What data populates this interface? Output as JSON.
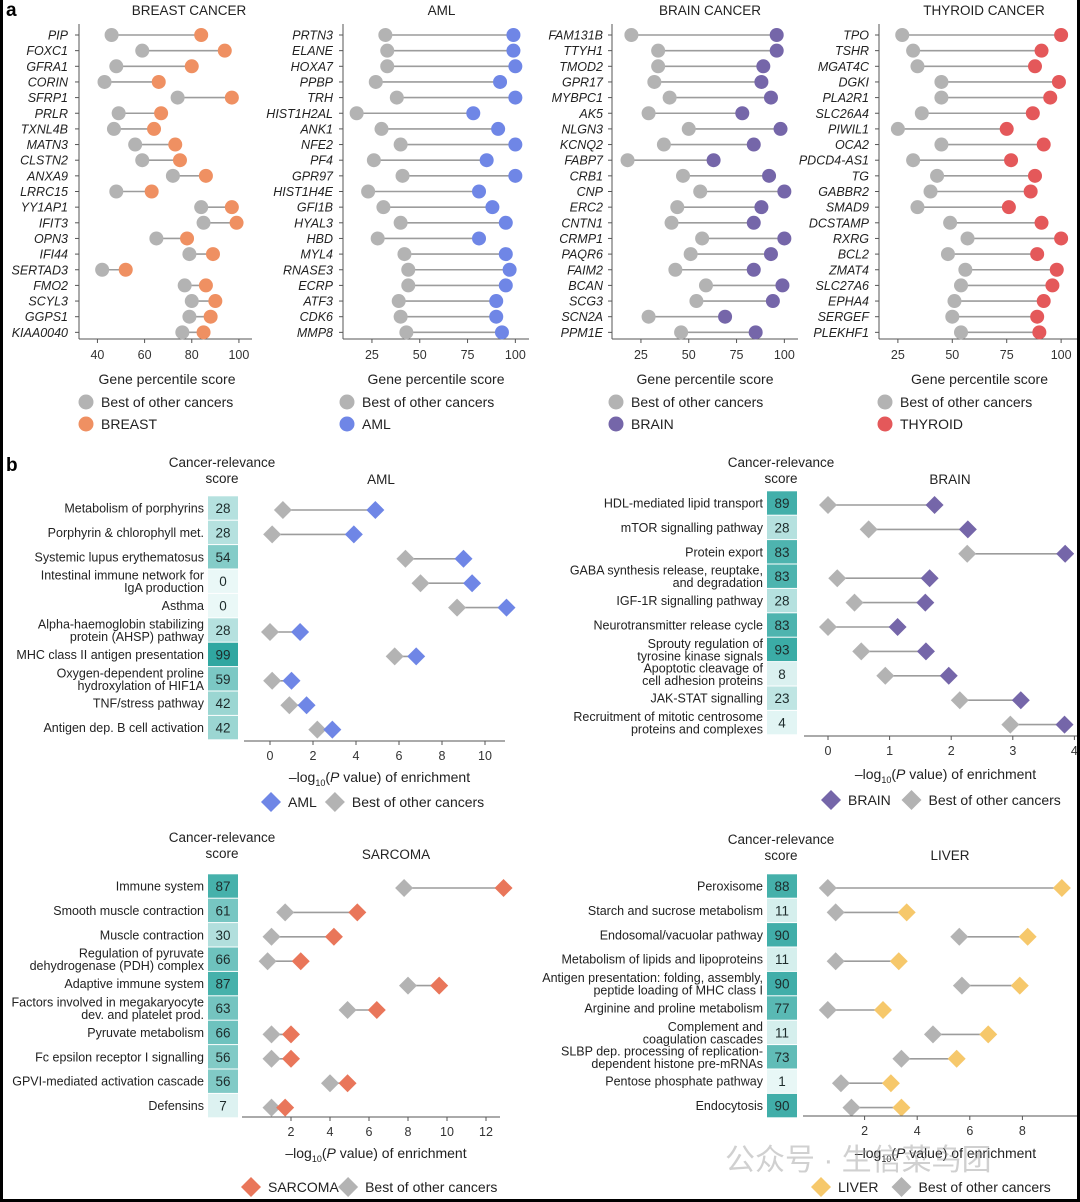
{
  "figure": {
    "panel_a_label": "a",
    "panel_b_label": "b",
    "watermark": "公众号 · 生信菜鸟团"
  },
  "colors": {
    "other": "#b3b3b3",
    "breast": "#ef9062",
    "aml": "#6f86e6",
    "brain": "#7566a9",
    "thyroid": "#e4585a",
    "sarcoma": "#e9765a",
    "liver": "#f6c86b",
    "line": "#9c9c9c",
    "axis": "#555555"
  },
  "chart_data": [
    {
      "type": "scatter",
      "subtype": "dumbbell",
      "title": "BREAST CANCER",
      "xlabel": "Gene percentile score",
      "xlim": [
        36,
        103
      ],
      "xticks": [
        40,
        60,
        80,
        100
      ],
      "legend": [
        "Best of other cancers",
        "BREAST"
      ],
      "legend_position": "bottom",
      "accent_key": "breast",
      "categories": [
        "PIP",
        "FOXC1",
        "GFRA1",
        "CORIN",
        "SFRP1",
        "PRLR",
        "TXNL4B",
        "MATN3",
        "CLSTN2",
        "ANXA9",
        "LRRC15",
        "YY1AP1",
        "IFIT3",
        "OPN3",
        "IFI44",
        "SERTAD3",
        "FMO2",
        "SCYL3",
        "GGPS1",
        "KIAA0040"
      ],
      "series": [
        {
          "name": "Best of other cancers",
          "values": [
            46,
            59,
            48,
            43,
            74,
            49,
            47,
            56,
            59,
            72,
            48,
            84,
            85,
            65,
            79,
            42,
            77,
            80,
            79,
            76
          ]
        },
        {
          "name": "BREAST",
          "values": [
            84,
            94,
            80,
            66,
            97,
            67,
            64,
            73,
            75,
            86,
            63,
            97,
            99,
            78,
            89,
            52,
            86,
            90,
            88,
            85
          ]
        }
      ]
    },
    {
      "type": "scatter",
      "subtype": "dumbbell",
      "title": "AML",
      "xlabel": "Gene percentile score",
      "xlim": [
        13,
        104
      ],
      "xticks": [
        25,
        50,
        75,
        100
      ],
      "legend": [
        "Best of other cancers",
        "AML"
      ],
      "legend_position": "bottom",
      "accent_key": "aml",
      "categories": [
        "PRTN3",
        "ELANE",
        "HOXA7",
        "PPBP",
        "TRH",
        "HIST1H2AL",
        "ANK1",
        "NFE2",
        "PF4",
        "GPR97",
        "HIST1H4E",
        "GFI1B",
        "HYAL3",
        "HBD",
        "MYL4",
        "RNASE3",
        "ECRP",
        "ATF3",
        "CDK6",
        "MMP8"
      ],
      "series": [
        {
          "name": "Best of other cancers",
          "values": [
            32,
            33,
            33,
            27,
            38,
            17,
            30,
            40,
            26,
            41,
            23,
            31,
            40,
            28,
            42,
            44,
            44,
            39,
            40,
            43
          ]
        },
        {
          "name": "AML",
          "values": [
            99,
            99,
            100,
            92,
            100,
            78,
            91,
            100,
            85,
            100,
            81,
            88,
            95,
            81,
            95,
            97,
            95,
            90,
            90,
            93
          ]
        }
      ]
    },
    {
      "type": "scatter",
      "subtype": "dumbbell",
      "title": "BRAIN CANCER",
      "xlabel": "Gene percentile score",
      "xlim": [
        13,
        104
      ],
      "xticks": [
        25,
        50,
        75,
        100
      ],
      "legend": [
        "Best of other cancers",
        "BRAIN"
      ],
      "legend_position": "bottom",
      "accent_key": "brain",
      "categories": [
        "FAM131B",
        "TTYH1",
        "TMOD2",
        "GPR17",
        "MYBPC1",
        "AK5",
        "NLGN3",
        "KCNQ2",
        "FABP7",
        "CRB1",
        "CNP",
        "ERC2",
        "CNTN1",
        "CRMP1",
        "PAQR6",
        "FAIM2",
        "BCAN",
        "SCG3",
        "SCN2A",
        "PPM1E"
      ],
      "series": [
        {
          "name": "Best of other cancers",
          "values": [
            20,
            34,
            34,
            32,
            40,
            29,
            50,
            37,
            18,
            47,
            56,
            44,
            41,
            57,
            51,
            43,
            59,
            54,
            29,
            46
          ]
        },
        {
          "name": "BRAIN",
          "values": [
            96,
            96,
            89,
            88,
            93,
            78,
            98,
            84,
            63,
            92,
            100,
            88,
            84,
            100,
            93,
            84,
            99,
            94,
            69,
            85
          ]
        }
      ]
    },
    {
      "type": "scatter",
      "subtype": "dumbbell",
      "title": "THYROID CANCER",
      "xlabel": "Gene percentile score",
      "xlim": [
        20,
        105
      ],
      "xticks": [
        25,
        50,
        75,
        100
      ],
      "legend": [
        "Best of other cancers",
        "THYROID"
      ],
      "legend_position": "bottom",
      "accent_key": "thyroid",
      "categories": [
        "TPO",
        "TSHR",
        "MGAT4C",
        "DGKI",
        "PLA2R1",
        "SLC26A4",
        "PIWIL1",
        "OCA2",
        "PDCD4-AS1",
        "TG",
        "GABBR2",
        "SMAD9",
        "DCSTAMP",
        "RXRG",
        "BCL2",
        "ZMAT4",
        "SLC27A6",
        "EPHA4",
        "SERGEF",
        "PLEKHF1"
      ],
      "series": [
        {
          "name": "Best of other cancers",
          "values": [
            27,
            32,
            34,
            45,
            45,
            36,
            25,
            45,
            32,
            43,
            40,
            34,
            49,
            57,
            48,
            56,
            54,
            51,
            50,
            54
          ]
        },
        {
          "name": "THYROID",
          "values": [
            100,
            91,
            88,
            99,
            95,
            87,
            75,
            92,
            77,
            88,
            86,
            76,
            91,
            100,
            89,
            98,
            96,
            92,
            89,
            90
          ]
        }
      ]
    },
    {
      "type": "scatter",
      "subtype": "dumbbell-with-heatmap",
      "title": "AML",
      "score_header": [
        "Cancer-relevance",
        "score"
      ],
      "xlabel_prefix": "–log",
      "xlabel_sub": "10",
      "xlabel_italic": "P",
      "xlabel_suffix": " value) of enrichment",
      "xlim": [
        -1.3,
        11.6
      ],
      "xticks": [
        0,
        2,
        4,
        6,
        8,
        10
      ],
      "legend": [
        "AML",
        "Best of other cancers"
      ],
      "legend_position": "bottom",
      "accent_key": "aml",
      "categories": [
        [
          "Metabolism of porphyrins"
        ],
        [
          "Porphyrin & chlorophyll met."
        ],
        [
          "Systemic lupus erythematosus"
        ],
        [
          "Intestinal immune network for",
          "IgA production"
        ],
        [
          "Asthma"
        ],
        [
          "Alpha-haemoglobin stabilizing",
          "protein (AHSP) pathway"
        ],
        [
          "MHC class II antigen presentation"
        ],
        [
          "Oxygen-dependent proline",
          "hydroxylation of HIF1A"
        ],
        [
          "TNF/stress pathway"
        ],
        [
          "Antigen dep. B cell activation"
        ]
      ],
      "scores": [
        28,
        28,
        54,
        0,
        0,
        28,
        99,
        59,
        42,
        42
      ],
      "series": [
        {
          "name": "AML",
          "values": [
            4.9,
            3.9,
            9.0,
            9.4,
            11.0,
            1.4,
            6.8,
            1.0,
            1.7,
            2.9
          ]
        },
        {
          "name": "Best of other cancers",
          "values": [
            0.6,
            0.1,
            6.3,
            7.0,
            8.7,
            0.0,
            5.8,
            0.1,
            0.9,
            2.2
          ]
        }
      ]
    },
    {
      "type": "scatter",
      "subtype": "dumbbell-with-heatmap",
      "title": "BRAIN",
      "score_header": [
        "Cancer-relevance",
        "score"
      ],
      "xlabel_prefix": "–log",
      "xlabel_sub": "10",
      "xlabel_italic": "P",
      "xlabel_suffix": " value) of enrichment",
      "xlim": [
        -0.4,
        4.0
      ],
      "xticks": [
        0,
        1,
        2,
        3,
        4
      ],
      "legend": [
        "BRAIN",
        "Best of other cancers"
      ],
      "legend_position": "bottom",
      "accent_key": "brain",
      "categories": [
        [
          "HDL-mediated lipid transport"
        ],
        [
          "mTOR signalling pathway"
        ],
        [
          "Protein export"
        ],
        [
          "GABA synthesis release, reuptake,",
          "and degradation"
        ],
        [
          "IGF-1R signalling pathway"
        ],
        [
          "Neurotransmitter release cycle"
        ],
        [
          "Sprouty regulation of",
          "tyrosine kinase signals"
        ],
        [
          "Apoptotic cleavage of",
          "cell adhesion proteins"
        ],
        [
          "JAK-STAT signalling"
        ],
        [
          "Recruitment of mitotic centrosome",
          "proteins and complexes"
        ]
      ],
      "scores": [
        89,
        28,
        83,
        83,
        28,
        83,
        93,
        8,
        23,
        4
      ],
      "series": [
        {
          "name": "BRAIN",
          "values": [
            1.73,
            2.27,
            3.85,
            1.65,
            1.58,
            1.13,
            1.59,
            1.96,
            3.13,
            3.84
          ]
        },
        {
          "name": "Best of other cancers",
          "values": [
            0.0,
            0.66,
            2.26,
            0.15,
            0.43,
            0.0,
            0.54,
            0.93,
            2.14,
            2.96
          ]
        }
      ]
    },
    {
      "type": "scatter",
      "subtype": "dumbbell-with-heatmap",
      "title": "SARCOMA",
      "score_header": [
        "Cancer-relevance",
        "score"
      ],
      "xlabel_prefix": "–log",
      "xlabel_sub": "10",
      "xlabel_italic": "P",
      "xlabel_suffix": " value) of enrichment",
      "xlim": [
        -0.5,
        13.7
      ],
      "xticks": [
        2,
        4,
        6,
        8,
        10,
        12
      ],
      "legend": [
        "SARCOMA",
        "Best of other cancers"
      ],
      "legend_position": "bottom",
      "accent_key": "sarcoma",
      "categories": [
        [
          "Immune system"
        ],
        [
          "Smooth muscle contraction"
        ],
        [
          "Muscle contraction"
        ],
        [
          "Regulation of pyruvate",
          "dehydrogenase (PDH) complex"
        ],
        [
          "Adaptive immune system"
        ],
        [
          "Factors involved in megakaryocyte",
          "dev. and platelet prod."
        ],
        [
          "Pyruvate metabolism"
        ],
        [
          "Fc epsilon receptor I signalling"
        ],
        [
          "GPVI-mediated activation cascade"
        ],
        [
          "Defensins"
        ]
      ],
      "scores": [
        87,
        61,
        30,
        66,
        87,
        63,
        66,
        56,
        56,
        7
      ],
      "series": [
        {
          "name": "SARCOMA",
          "values": [
            12.9,
            5.4,
            4.2,
            2.5,
            9.6,
            6.4,
            2.0,
            2.0,
            4.9,
            1.7
          ]
        },
        {
          "name": "Best of other cancers",
          "values": [
            7.8,
            1.7,
            1.0,
            0.8,
            8.0,
            4.9,
            1.0,
            1.0,
            4.0,
            1.0
          ]
        }
      ]
    },
    {
      "type": "scatter",
      "subtype": "dumbbell-with-heatmap",
      "title": "LIVER",
      "score_header": [
        "Cancer-relevance",
        "score"
      ],
      "xlabel_prefix": "–log",
      "xlabel_sub": "10",
      "xlabel_italic": "P",
      "xlabel_suffix": " value) of enrichment",
      "xlim": [
        -0.4,
        9.8
      ],
      "xticks": [
        2,
        4,
        6,
        8
      ],
      "legend": [
        "LIVER",
        "Best of other cancers"
      ],
      "legend_position": "bottom",
      "accent_key": "liver",
      "categories": [
        [
          "Peroxisome"
        ],
        [
          "Starch and sucrose metabolism"
        ],
        [
          "Endosomal/vacuolar pathway"
        ],
        [
          "Metabolism of lipids and lipoproteins"
        ],
        [
          "Antigen presentation: folding, assembly,",
          "peptide loading of MHC class I"
        ],
        [
          "Arginine and proline metabolism"
        ],
        [
          "Complement and",
          "coagulation cascades"
        ],
        [
          "SLBP dep. processing of replication-",
          "dependent histone pre-mRNAs"
        ],
        [
          "Pentose phosphate pathway"
        ],
        [
          "Endocytosis"
        ]
      ],
      "scores": [
        88,
        11,
        90,
        11,
        90,
        77,
        11,
        73,
        1,
        90
      ],
      "series": [
        {
          "name": "LIVER",
          "values": [
            9.5,
            3.6,
            8.2,
            3.3,
            7.9,
            2.7,
            6.7,
            5.5,
            3.0,
            3.4
          ]
        },
        {
          "name": "Best of other cancers",
          "values": [
            0.6,
            0.9,
            5.6,
            0.9,
            5.7,
            0.6,
            4.6,
            3.4,
            1.1,
            1.5
          ]
        }
      ]
    }
  ]
}
